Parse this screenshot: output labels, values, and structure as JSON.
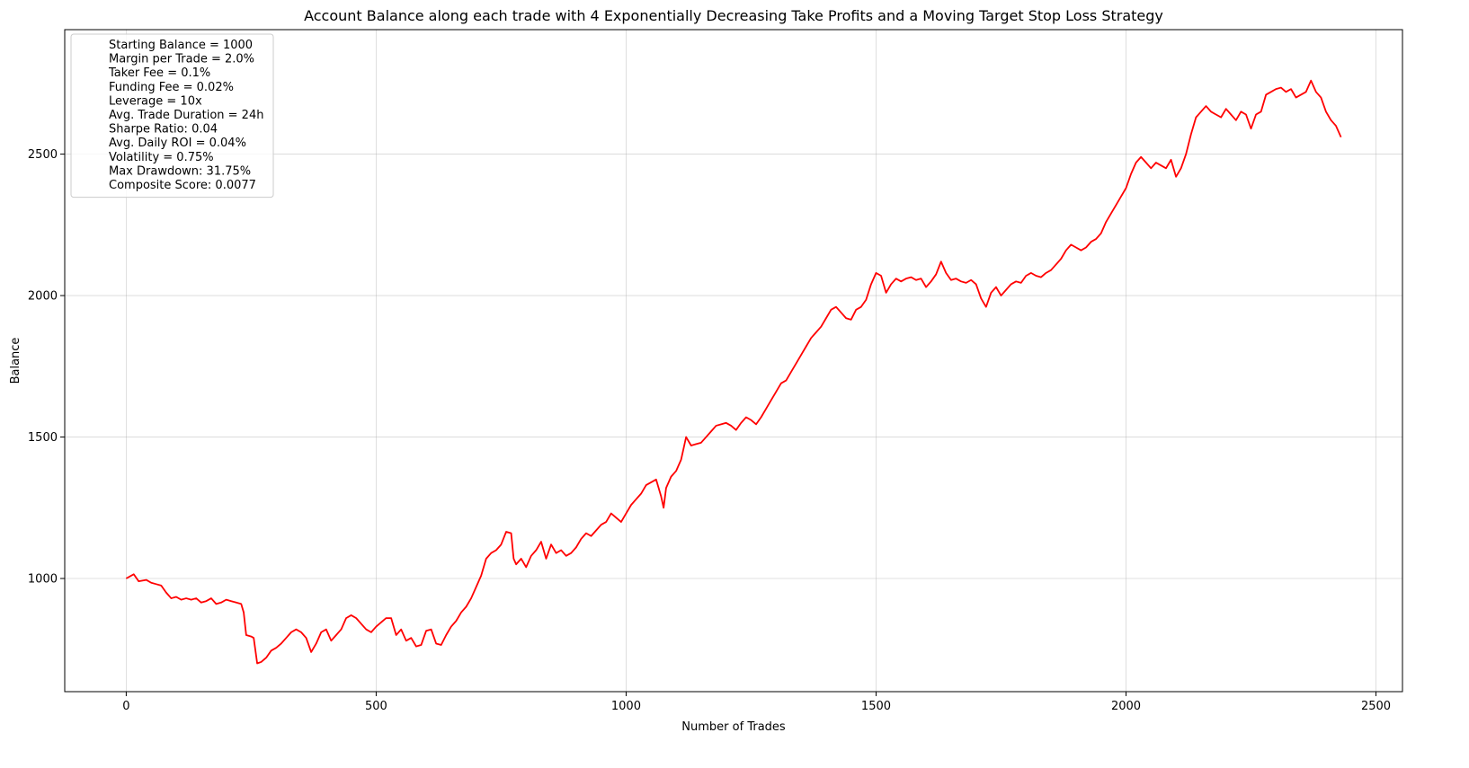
{
  "chart_data": {
    "type": "line",
    "title": "Account Balance along each trade with 4 Exponentially Decreasing Take Profits and a Moving Target Stop Loss Strategy",
    "xlabel": "Number of Trades",
    "ylabel": "Balance",
    "xlim": [
      -123,
      2553
    ],
    "ylim": [
      600,
      2940
    ],
    "x_ticks": [
      0,
      500,
      1000,
      1500,
      2000,
      2500
    ],
    "y_ticks": [
      1000,
      1500,
      2000,
      2500
    ],
    "grid": true,
    "legend_position": "top-left",
    "legend_lines": [
      "Starting Balance = 1000",
      "Margin per Trade = 2.0%",
      "Taker Fee = 0.1%",
      "Funding Fee = 0.02%",
      "Leverage = 10x",
      "Avg. Trade Duration = 24h",
      "Sharpe Ratio: 0.04",
      "Avg. Daily ROI = 0.04%",
      "Volatility = 0.75%",
      "Max Drawdown: 31.75%",
      "Composite Score: 0.0077"
    ],
    "series": [
      {
        "color": "#ff0000",
        "x": [
          0,
          15,
          25,
          40,
          50,
          60,
          70,
          80,
          90,
          100,
          110,
          120,
          130,
          140,
          150,
          160,
          170,
          180,
          190,
          200,
          210,
          220,
          230,
          235,
          240,
          250,
          255,
          262,
          270,
          280,
          290,
          300,
          310,
          320,
          330,
          340,
          350,
          360,
          370,
          380,
          390,
          400,
          410,
          420,
          430,
          440,
          450,
          460,
          470,
          480,
          490,
          500,
          510,
          520,
          530,
          540,
          550,
          560,
          570,
          580,
          590,
          600,
          610,
          620,
          630,
          640,
          650,
          660,
          670,
          680,
          690,
          700,
          710,
          720,
          730,
          740,
          750,
          760,
          770,
          775,
          780,
          790,
          800,
          810,
          820,
          830,
          840,
          850,
          860,
          870,
          880,
          890,
          900,
          910,
          920,
          930,
          940,
          950,
          960,
          970,
          980,
          990,
          1000,
          1010,
          1020,
          1030,
          1040,
          1050,
          1060,
          1070,
          1075,
          1080,
          1090,
          1100,
          1110,
          1115,
          1120,
          1130,
          1140,
          1150,
          1160,
          1170,
          1180,
          1190,
          1200,
          1210,
          1220,
          1230,
          1240,
          1250,
          1260,
          1270,
          1280,
          1290,
          1300,
          1310,
          1320,
          1330,
          1340,
          1350,
          1360,
          1370,
          1380,
          1390,
          1400,
          1410,
          1420,
          1430,
          1440,
          1450,
          1460,
          1470,
          1480,
          1490,
          1500,
          1510,
          1520,
          1530,
          1540,
          1550,
          1560,
          1570,
          1580,
          1590,
          1600,
          1610,
          1620,
          1630,
          1640,
          1650,
          1660,
          1670,
          1680,
          1690,
          1700,
          1710,
          1720,
          1730,
          1740,
          1750,
          1760,
          1770,
          1780,
          1790,
          1800,
          1810,
          1820,
          1830,
          1840,
          1850,
          1860,
          1870,
          1880,
          1890,
          1900,
          1910,
          1920,
          1930,
          1940,
          1950,
          1960,
          1970,
          1980,
          1990,
          2000,
          2010,
          2020,
          2030,
          2040,
          2050,
          2060,
          2070,
          2080,
          2090,
          2100,
          2110,
          2120,
          2130,
          2140,
          2150,
          2160,
          2170,
          2180,
          2190,
          2200,
          2210,
          2220,
          2230,
          2240,
          2250,
          2260,
          2270,
          2280,
          2290,
          2300,
          2310,
          2320,
          2330,
          2340,
          2350,
          2360,
          2370,
          2380,
          2390,
          2400,
          2410,
          2420,
          2430
        ],
        "y": [
          1000,
          1015,
          990,
          995,
          985,
          980,
          975,
          950,
          930,
          935,
          925,
          930,
          925,
          930,
          915,
          920,
          930,
          910,
          915,
          925,
          920,
          915,
          910,
          880,
          800,
          795,
          790,
          700,
          705,
          720,
          745,
          755,
          770,
          790,
          810,
          820,
          810,
          790,
          740,
          770,
          810,
          820,
          780,
          800,
          820,
          860,
          870,
          860,
          840,
          820,
          810,
          830,
          845,
          860,
          860,
          800,
          820,
          780,
          790,
          760,
          765,
          815,
          820,
          770,
          765,
          800,
          830,
          850,
          880,
          900,
          930,
          970,
          1010,
          1070,
          1090,
          1100,
          1120,
          1165,
          1160,
          1070,
          1050,
          1070,
          1040,
          1080,
          1100,
          1130,
          1070,
          1120,
          1090,
          1100,
          1080,
          1090,
          1110,
          1140,
          1160,
          1150,
          1170,
          1190,
          1200,
          1230,
          1215,
          1200,
          1230,
          1260,
          1280,
          1300,
          1330,
          1340,
          1350,
          1290,
          1250,
          1320,
          1360,
          1380,
          1420,
          1460,
          1500,
          1470,
          1475,
          1480,
          1500,
          1520,
          1540,
          1545,
          1550,
          1540,
          1525,
          1550,
          1570,
          1560,
          1545,
          1570,
          1600,
          1630,
          1660,
          1690,
          1700,
          1730,
          1760,
          1790,
          1820,
          1850,
          1870,
          1890,
          1920,
          1950,
          1960,
          1940,
          1920,
          1915,
          1950,
          1960,
          1985,
          2040,
          2080,
          2070,
          2010,
          2040,
          2060,
          2050,
          2060,
          2065,
          2055,
          2060,
          2030,
          2050,
          2075,
          2120,
          2080,
          2055,
          2060,
          2050,
          2045,
          2055,
          2040,
          1990,
          1960,
          2010,
          2030,
          2000,
          2020,
          2040,
          2050,
          2045,
          2070,
          2080,
          2070,
          2065,
          2080,
          2090,
          2110,
          2130,
          2160,
          2180,
          2170,
          2160,
          2170,
          2190,
          2200,
          2220,
          2260,
          2290,
          2320,
          2350,
          2380,
          2430,
          2470,
          2490,
          2470,
          2450,
          2470,
          2460,
          2450,
          2480,
          2420,
          2450,
          2500,
          2570,
          2630,
          2650,
          2670,
          2650,
          2640,
          2630,
          2660,
          2640,
          2620,
          2650,
          2640,
          2590,
          2640,
          2650,
          2710,
          2720,
          2730,
          2735,
          2720,
          2730,
          2700,
          2710,
          2720,
          2760,
          2720,
          2700,
          2650,
          2620,
          2600,
          2560
        ]
      }
    ]
  }
}
